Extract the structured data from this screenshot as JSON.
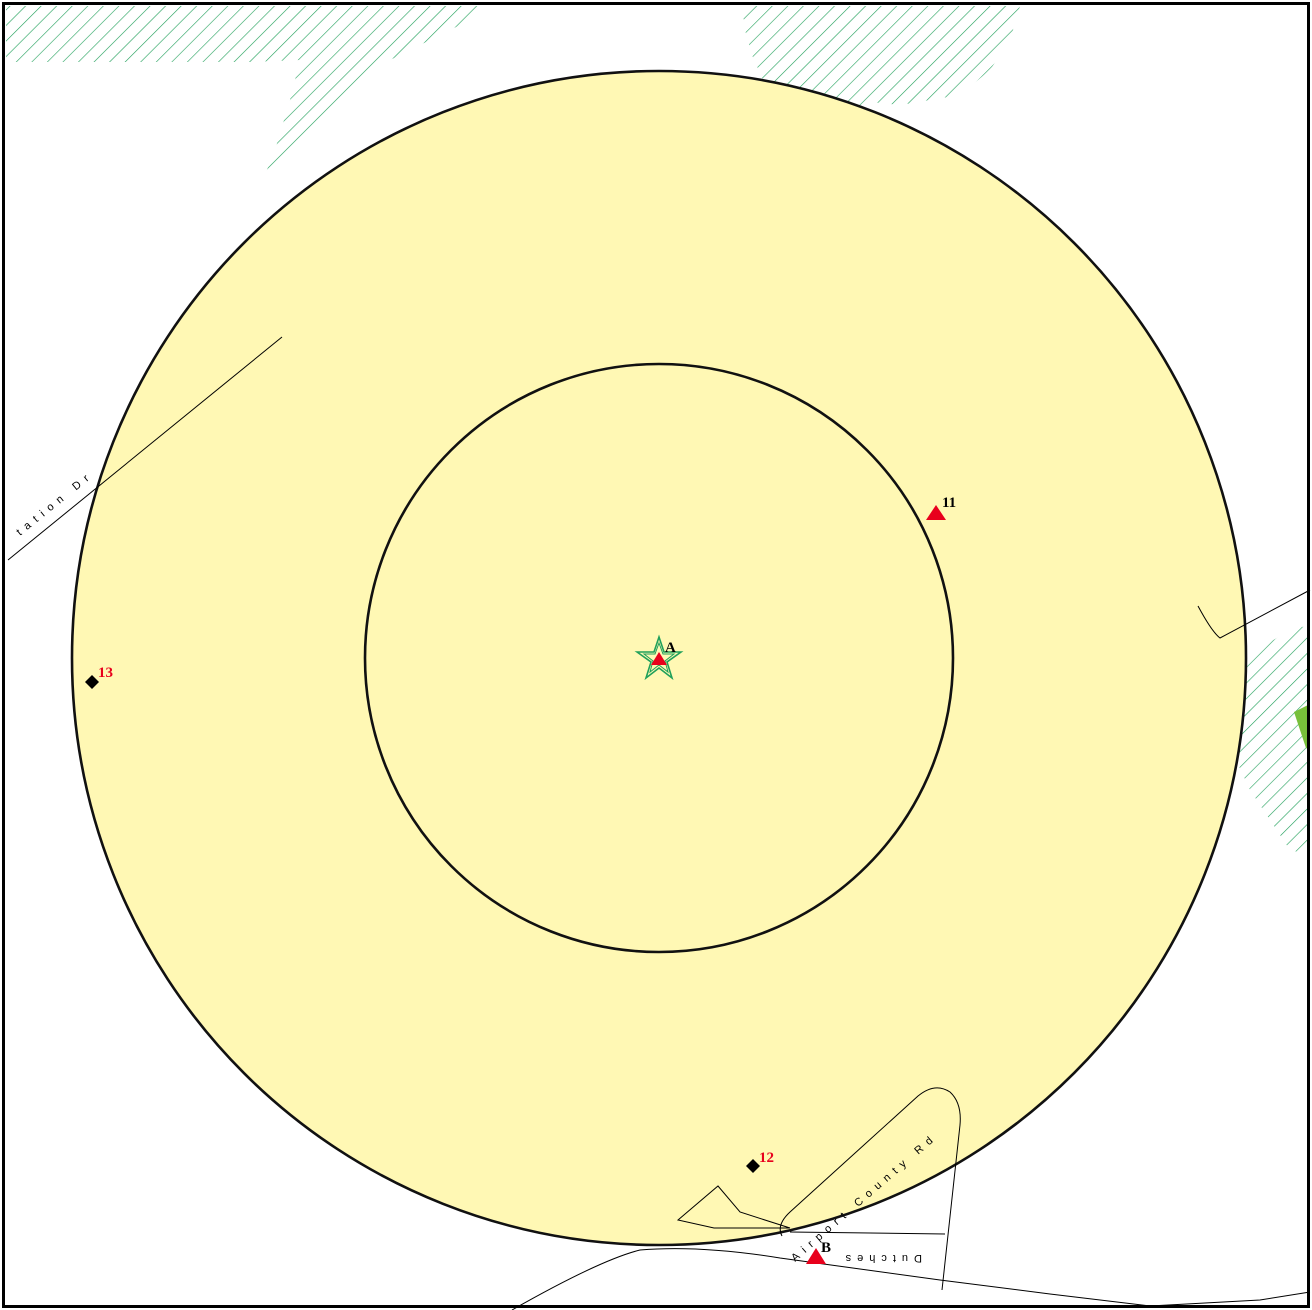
{
  "map": {
    "center_site": {
      "label": "A"
    },
    "sites": [
      {
        "label": "11",
        "marker": "triangle",
        "label_color": "#000000"
      },
      {
        "label": "12",
        "marker": "diamond",
        "label_color": "#e8001c"
      },
      {
        "label": "13",
        "marker": "diamond",
        "label_color": "#e8001c"
      },
      {
        "label": "B",
        "marker": "triangle",
        "label_color": "#000000"
      }
    ],
    "roads": [
      {
        "label": "tation Dr"
      },
      {
        "label": "Airport County Rd"
      },
      {
        "label": "Dutches"
      }
    ],
    "colors": {
      "buffer_fill": "#fff8b4",
      "hatch": "#1fa05a",
      "marker_red": "#e8001c",
      "vegetation_patch": "#78c03a"
    }
  }
}
